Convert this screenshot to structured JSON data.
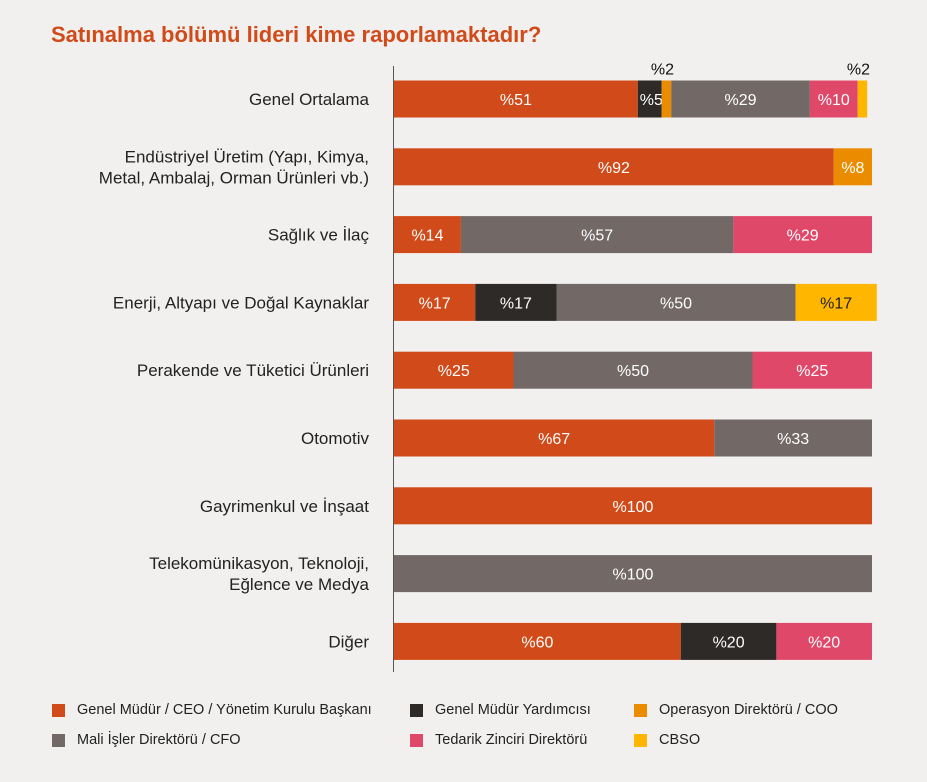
{
  "chart_data": {
    "type": "bar",
    "orientation": "horizontal",
    "stacked": true,
    "title": "Satınalma bölümü lideri kime raporlamaktadır?",
    "categories": [
      [
        "Genel Ortalama"
      ],
      [
        "Endüstriyel Üretim (Yapı, Kimya,",
        "Metal, Ambalaj, Orman Ürünleri vb.)"
      ],
      [
        "Sağlık ve İlaç"
      ],
      [
        "Enerji, Altyapı ve Doğal Kaynaklar"
      ],
      [
        "Perakende ve Tüketici Ürünleri"
      ],
      [
        "Otomotiv"
      ],
      [
        "Gayrimenkul ve İnşaat"
      ],
      [
        "Telekomünikasyon, Teknoloji,",
        "Eğlence ve Medya"
      ],
      [
        "Diğer"
      ]
    ],
    "series": [
      {
        "name": "Genel Müdür / CEO / Yönetim Kurulu Başkanı",
        "color": "#d04a1a",
        "text_color": "#ffffff",
        "values": [
          51,
          92,
          14,
          17,
          25,
          67,
          100,
          0,
          60
        ]
      },
      {
        "name": "Genel Müdür Yardımcısı",
        "color": "#2d2a28",
        "text_color": "#ffffff",
        "values": [
          5,
          0,
          0,
          17,
          0,
          0,
          0,
          0,
          20
        ]
      },
      {
        "name": "Operasyon Direktörü / COO",
        "color": "#eb8c00",
        "text_color": "#ffffff",
        "values": [
          2,
          8,
          0,
          0,
          0,
          0,
          0,
          0,
          0
        ]
      },
      {
        "name": "Mali İşler Direktörü / CFO",
        "color": "#726866",
        "text_color": "#ffffff",
        "values": [
          29,
          0,
          57,
          50,
          50,
          33,
          0,
          100,
          0
        ]
      },
      {
        "name": "Tedarik Zinciri Direktörü",
        "color": "#e0486a",
        "text_color": "#ffffff",
        "values": [
          10,
          0,
          29,
          0,
          25,
          0,
          0,
          0,
          20
        ]
      },
      {
        "name": "CBSO",
        "color": "#ffb600",
        "text_color": "#222222",
        "values": [
          2,
          0,
          0,
          17,
          0,
          0,
          0,
          0,
          0
        ]
      }
    ],
    "value_prefix": "%",
    "xlim": [
      0,
      100
    ],
    "legend_position": "bottom"
  }
}
